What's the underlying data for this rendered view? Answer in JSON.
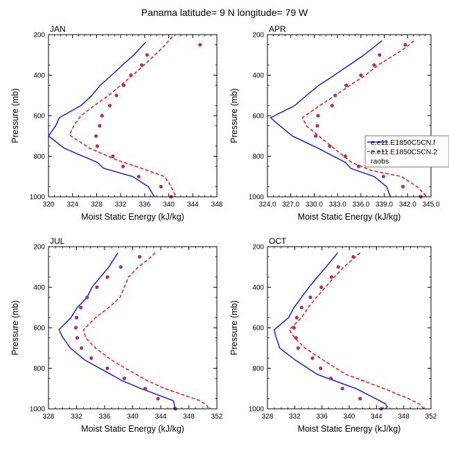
{
  "figure": {
    "title": "Panama  latitude= 9 N longitude= 79 W",
    "ylabel": "Pressure (mb)",
    "xlabel": "Moist Static Energy (kJ/kg)"
  },
  "legend": {
    "entries": [
      {
        "label": "e.e11.E1850C5CN.f",
        "color": "#0000ee",
        "style": "solid"
      },
      {
        "label": "e.e11.E1850C5CN.2",
        "color": "#ee0000",
        "style": "dashed"
      },
      {
        "label": "raobs",
        "color": "#b03060",
        "style": "marker"
      }
    ]
  },
  "colors": {
    "series1": "#1a1aee",
    "series2": "#ee1111",
    "raobs": "#b03060"
  },
  "chart_data": [
    {
      "type": "line",
      "title": "JAN",
      "xlabel": "Moist Static Energy (kJ/kg)",
      "ylabel": "Pressure (mb)",
      "xlim": [
        320,
        348
      ],
      "xticks": [
        320,
        324,
        328,
        332,
        336,
        340,
        344,
        348
      ],
      "xtick_labels": [
        "320",
        "324",
        "328",
        "332",
        "336",
        "340",
        "344",
        "348"
      ],
      "ylim": [
        1000,
        200
      ],
      "yticks": [
        200,
        400,
        600,
        800,
        1000
      ],
      "series": [
        {
          "name": "e.e11.E1850C5CN.f",
          "p": [
            236,
            300,
            350,
            400,
            450,
            500,
            550,
            610,
            650,
            700,
            760,
            830,
            860,
            900,
            950,
            1000
          ],
          "mse": [
            336.2,
            334.2,
            332.3,
            330.5,
            328.6,
            327.2,
            325.4,
            321.8,
            321.2,
            320.0,
            322.6,
            328.1,
            329.2,
            334.0,
            336.6,
            337.6
          ]
        },
        {
          "name": "e.e11.E1850C5CN.2",
          "p": [
            210,
            260,
            300,
            350,
            400,
            450,
            500,
            550,
            600,
            650,
            695,
            760,
            820,
            860,
            900,
            940,
            975,
            1000
          ],
          "mse": [
            340.6,
            339.1,
            337.7,
            335.9,
            334.0,
            332.0,
            330.0,
            327.6,
            325.4,
            324.2,
            323.5,
            326.8,
            331.5,
            335.5,
            339.3,
            340.2,
            340.8,
            341.2
          ]
        },
        {
          "name": "raobs",
          "p": [
            250,
            300,
            350,
            400,
            450,
            500,
            550,
            600,
            650,
            700,
            750,
            800,
            850,
            900,
            950,
            1000
          ],
          "mse": [
            345.2,
            336.4,
            335.5,
            333.7,
            332.5,
            331.3,
            330.2,
            328.9,
            328.5,
            327.9,
            328.1,
            330.7,
            332.4,
            335.0,
            338.7,
            340.4
          ]
        }
      ]
    },
    {
      "type": "line",
      "title": "APR",
      "xlabel": "Moist Static Energy (kJ/kg)",
      "ylabel": "Pressure (mb)",
      "xlim": [
        324,
        345
      ],
      "xticks": [
        324,
        327,
        330,
        333,
        336,
        339,
        342,
        345
      ],
      "xtick_labels": [
        "324.0",
        "327.0",
        "330.0",
        "333.0",
        "336.0",
        "339.0",
        "342.0",
        "345.0"
      ],
      "ylim": [
        1000,
        200
      ],
      "yticks": [
        200,
        400,
        600,
        800,
        1000
      ],
      "series": [
        {
          "name": "e.e11.E1850C5CN.f",
          "p": [
            230,
            300,
            350,
            400,
            450,
            500,
            550,
            610,
            640,
            700,
            760,
            830,
            860,
            900,
            950,
            1000
          ],
          "mse": [
            338.7,
            336.4,
            334.5,
            332.6,
            330.6,
            329.0,
            327.5,
            324.4,
            325.3,
            327.2,
            330.5,
            334.0,
            334.7,
            337.7,
            339.3,
            339.8
          ]
        },
        {
          "name": "e.e11.E1850C5CN.2",
          "p": [
            230,
            260,
            300,
            350,
            400,
            450,
            500,
            550,
            610,
            650,
            700,
            760,
            830,
            870,
            900,
            950,
            1000
          ],
          "mse": [
            342.8,
            341.9,
            340.3,
            338.2,
            336.6,
            334.6,
            332.7,
            330.7,
            328.5,
            329.0,
            330.6,
            332.5,
            334.8,
            337.3,
            341.2,
            343.2,
            344.5
          ]
        },
        {
          "name": "raobs",
          "p": [
            250,
            300,
            350,
            400,
            450,
            500,
            550,
            600,
            650,
            700,
            750,
            800,
            850,
            900,
            950,
            1000
          ],
          "mse": [
            341.7,
            338.4,
            337.7,
            336.0,
            334.1,
            332.7,
            332.3,
            330.5,
            330.4,
            330.2,
            332.0,
            334.0,
            335.7,
            338.9,
            341.4,
            343.7
          ]
        }
      ]
    },
    {
      "type": "line",
      "title": "JUL",
      "xlabel": "Moist Static Energy (kJ/kg)",
      "ylabel": "Pressure (mb)",
      "xlim": [
        328,
        352
      ],
      "xticks": [
        328,
        332,
        336,
        340,
        344,
        348,
        352
      ],
      "xtick_labels": [
        "328",
        "332",
        "336",
        "340",
        "344",
        "348",
        "352"
      ],
      "ylim": [
        1000,
        200
      ],
      "yticks": [
        200,
        400,
        600,
        800,
        1000
      ],
      "series": [
        {
          "name": "e.e11.E1850C5CN.f",
          "p": [
            230,
            300,
            350,
            400,
            450,
            500,
            550,
            610,
            640,
            700,
            760,
            830,
            860,
            900,
            960,
            990,
            1000
          ],
          "mse": [
            337.9,
            336.6,
            335.4,
            334.2,
            333.5,
            332.1,
            331.2,
            329.5,
            329.9,
            331.1,
            333.2,
            336.9,
            338.4,
            341.2,
            345.8,
            346.0,
            345.8
          ]
        },
        {
          "name": "e.e11.E1850C5CN.2",
          "p": [
            230,
            260,
            300,
            350,
            400,
            450,
            500,
            550,
            610,
            650,
            700,
            760,
            830,
            860,
            900,
            960,
            985,
            1000
          ],
          "mse": [
            343.2,
            342.3,
            340.8,
            339.4,
            338.8,
            338.2,
            336.6,
            334.7,
            333.0,
            333.3,
            334.7,
            337.0,
            340.5,
            342.0,
            344.6,
            349.6,
            350.6,
            350.8
          ]
        },
        {
          "name": "raobs",
          "p": [
            250,
            300,
            350,
            400,
            450,
            500,
            550,
            600,
            650,
            700,
            750,
            800,
            850,
            900,
            950,
            1000
          ],
          "mse": [
            341.0,
            338.3,
            336.4,
            334.9,
            333.5,
            332.6,
            332.0,
            331.9,
            332.1,
            332.7,
            334.1,
            336.4,
            338.8,
            341.8,
            343.6,
            346.1
          ]
        }
      ]
    },
    {
      "type": "line",
      "title": "OCT",
      "xlabel": "Moist Static Energy (kJ/kg)",
      "ylabel": "Pressure (mb)",
      "xlim": [
        328,
        352
      ],
      "xticks": [
        328,
        332,
        336,
        340,
        344,
        348,
        352
      ],
      "xtick_labels": [
        "328",
        "332",
        "336",
        "340",
        "344",
        "348",
        "352"
      ],
      "ylim": [
        1000,
        200
      ],
      "yticks": [
        200,
        400,
        600,
        800,
        1000
      ],
      "series": [
        {
          "name": "e.e11.E1850C5CN.f",
          "p": [
            230,
            300,
            350,
            400,
            450,
            500,
            550,
            610,
            640,
            700,
            760,
            830,
            860,
            900,
            950,
            975,
            990,
            1000
          ],
          "mse": [
            338.3,
            336.6,
            335.3,
            334.1,
            333.0,
            331.9,
            331.1,
            329.0,
            329.2,
            329.8,
            332.1,
            335.3,
            337.7,
            341.0,
            343.9,
            345.3,
            345.6,
            345.3
          ]
        },
        {
          "name": "e.e11.E1850C5CN.2",
          "p": [
            230,
            260,
            300,
            350,
            400,
            450,
            500,
            550,
            610,
            650,
            700,
            760,
            830,
            860,
            900,
            950,
            980,
            1000
          ],
          "mse": [
            341.6,
            340.6,
            339.2,
            337.8,
            336.5,
            335.2,
            334.0,
            333.0,
            331.2,
            332.0,
            333.5,
            336.2,
            339.5,
            341.9,
            345.1,
            348.7,
            350.5,
            350.9
          ]
        },
        {
          "name": "raobs",
          "p": [
            250,
            300,
            350,
            400,
            450,
            500,
            550,
            600,
            650,
            700,
            750,
            800,
            850,
            900,
            950,
            1000
          ],
          "mse": [
            340.6,
            338.4,
            337.4,
            335.9,
            334.3,
            333.0,
            332.3,
            331.9,
            332.2,
            332.5,
            334.6,
            335.8,
            337.3,
            339.0,
            341.6,
            344.7
          ]
        }
      ]
    }
  ]
}
